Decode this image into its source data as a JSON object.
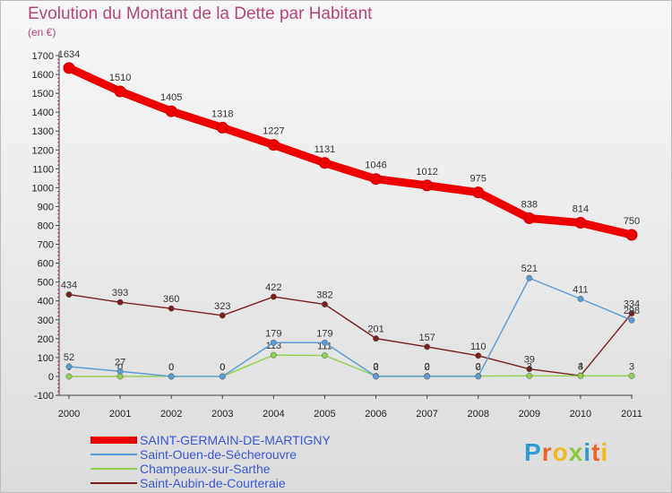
{
  "chart_data": {
    "type": "line",
    "title": "Evolution du Montant de la Dette par Habitant",
    "ylabel": "(en €)",
    "x": [
      "2000",
      "2001",
      "2002",
      "2003",
      "2004",
      "2005",
      "2006",
      "2007",
      "2008",
      "2009",
      "2010",
      "2011"
    ],
    "ylim": [
      -100,
      1700
    ],
    "yticks": [
      -100,
      0,
      100,
      200,
      300,
      400,
      500,
      600,
      700,
      800,
      900,
      1000,
      1100,
      1200,
      1300,
      1400,
      1500,
      1600,
      1700
    ],
    "grid": false,
    "legend_position": "bottom-left",
    "series": [
      {
        "name": "SAINT-GERMAIN-DE-MARTIGNY",
        "color": "#ee0000",
        "values": [
          1634,
          1510,
          1405,
          1318,
          1227,
          1131,
          1046,
          1012,
          975,
          838,
          814,
          750
        ]
      },
      {
        "name": "Saint-Ouen-de-Sécherouvre",
        "color": "#5b9bd5",
        "values": [
          52,
          27,
          0,
          0,
          179,
          179,
          0,
          0,
          0,
          521,
          411,
          298
        ]
      },
      {
        "name": "Champeaux-sur-Sarthe",
        "color": "#92d050",
        "values": [
          0,
          0,
          0,
          0,
          113,
          111,
          2,
          2,
          2,
          3,
          3,
          3
        ]
      },
      {
        "name": "Saint-Aubin-de-Courteraie",
        "color": "#7b2020",
        "values": [
          434,
          393,
          360,
          323,
          422,
          382,
          201,
          157,
          110,
          39,
          4,
          334
        ]
      }
    ]
  },
  "logo": {
    "text": "Proxiti",
    "letter_colors": [
      "#2e9bd6",
      "#e8662a",
      "#f3b81c",
      "#8fc63f",
      "#2e9bd6",
      "#e8662a",
      "#f3b81c"
    ]
  }
}
